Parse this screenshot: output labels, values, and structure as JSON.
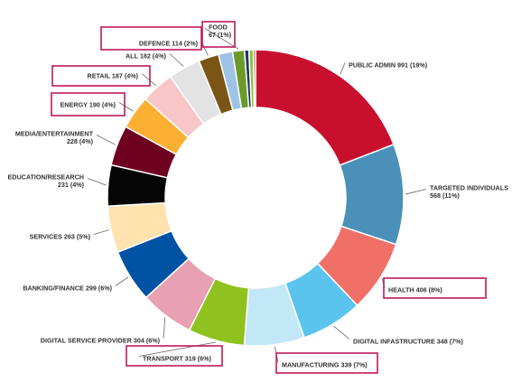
{
  "chart_data": {
    "type": "pie",
    "subtype": "donut",
    "legend": "none",
    "segments": [
      {
        "name": "PUBLIC ADMIN",
        "value": 991,
        "pct": "19%",
        "label": "PUBLIC ADMIN 991 (19%)",
        "color": "#c8102e",
        "highlighted": false
      },
      {
        "name": "TARGETED INDIVIDUALS",
        "value": 568,
        "pct": "11%",
        "label": [
          "TARGETED INDIVIDUALS",
          "568 (11%)"
        ],
        "color": "#4a90b8",
        "highlighted": false
      },
      {
        "name": "HEALTH",
        "value": 406,
        "pct": "8%",
        "label": "HEALTH 406 (8%)",
        "color": "#f07068",
        "highlighted": true
      },
      {
        "name": "DIGITAL INFASTRUCTURE",
        "value": 348,
        "pct": "7%",
        "label": "DIGITAL INFASTRUCTURE 348 (7%)",
        "color": "#5bc4ee",
        "highlighted": false
      },
      {
        "name": "MANUFACTURING",
        "value": 339,
        "pct": "7%",
        "label": "MANUFACTURING 339 (7%)",
        "color": "#c2e7f7",
        "highlighted": true
      },
      {
        "name": "TRANSPORT",
        "value": 319,
        "pct": "6%",
        "label": "TRANSPORT 319 (6%)",
        "color": "#8fc21f",
        "highlighted": true
      },
      {
        "name": "DIGITAL SERVICE PROVIDER",
        "value": 304,
        "pct": "6%",
        "label": "DIGITAL SERVICE PROVIDER 304 (6%)",
        "color": "#e8a0b4",
        "highlighted": false
      },
      {
        "name": "BANKING/FINANCE",
        "value": 299,
        "pct": "6%",
        "label": "BANKING/FINANCE 299 (6%)",
        "color": "#0052a5",
        "highlighted": false
      },
      {
        "name": "SERVICES",
        "value": 263,
        "pct": "5%",
        "label": "SERVICES 263 (5%)",
        "color": "#ffe2ae",
        "highlighted": false
      },
      {
        "name": "EDUCATION/RESEARCH",
        "value": 231,
        "pct": "4%",
        "label": [
          "EDUCATION/RESEARCH",
          "231 (4%)"
        ],
        "color": "#050505",
        "highlighted": false
      },
      {
        "name": "MEDIA/ENTERTAINMENT",
        "value": 228,
        "pct": "4%",
        "label": [
          "MEDIA/ENTERTAINMENT",
          "228 (4%)"
        ],
        "color": "#6e0020",
        "highlighted": false
      },
      {
        "name": "ENERGY",
        "value": 190,
        "pct": "4%",
        "label": "ENERGY 190 (4%)",
        "color": "#fbb034",
        "highlighted": true
      },
      {
        "name": "RETAIL",
        "value": 187,
        "pct": "4%",
        "label": "RETAIL 187 (4%)",
        "color": "#f8c6c6",
        "highlighted": true
      },
      {
        "name": "ALL",
        "value": 182,
        "pct": "4%",
        "label": "ALL 182 (4%)",
        "color": "#e3e3e3",
        "highlighted": false
      },
      {
        "name": "DEFENCE",
        "value": 114,
        "pct": "2%",
        "label": "DEFENCE 114 (2%)",
        "color": "#7a5516",
        "highlighted": true
      },
      {
        "name": "",
        "value": 80,
        "pct": "",
        "label": null,
        "color": "#9ec3e6",
        "highlighted": false
      },
      {
        "name": "FOOD",
        "value": 67,
        "pct": "1%",
        "label": [
          "FOOD",
          "67 (1%)"
        ],
        "color": "#6c9a27",
        "highlighted": true
      },
      {
        "name": "",
        "value": 25,
        "pct": "",
        "label": null,
        "color": "#1f3864",
        "highlighted": false
      },
      {
        "name": "",
        "value": 25,
        "pct": "",
        "label": null,
        "color": "#8dc63f",
        "highlighted": false
      },
      {
        "name": "",
        "value": 12,
        "pct": "",
        "label": null,
        "color": "#bf1e2e",
        "highlighted": false
      }
    ],
    "highlight_color": "#c0185a"
  }
}
